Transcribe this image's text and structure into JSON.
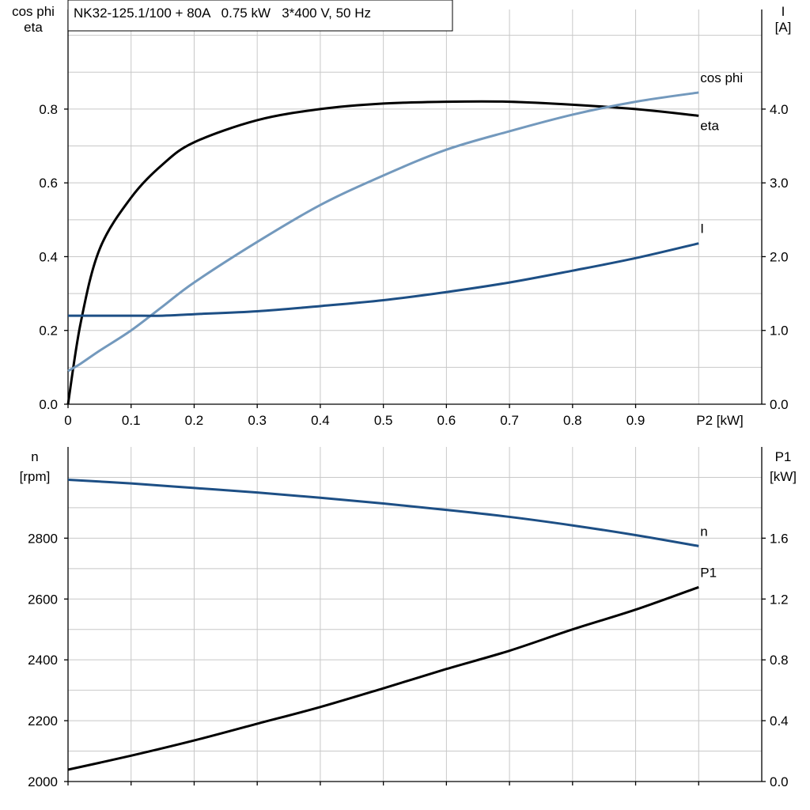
{
  "title": "NK32-125.1/100 + 80A   0.75 kW   3*400 V, 50 Hz",
  "colors": {
    "eta": "#000000",
    "cos_phi": "#7399bd",
    "I": "#1d4f85",
    "n": "#1d4f85",
    "P1": "#000000"
  },
  "chart_data": [
    {
      "type": "line",
      "left_axis_label": [
        "cos phi",
        "eta"
      ],
      "right_axis_label": [
        "I",
        "[A]"
      ],
      "xlabel": "P2 [kW]",
      "x_ticks": [
        "0",
        "0.1",
        "0.2",
        "0.3",
        "0.4",
        "0.5",
        "0.6",
        "0.7",
        "0.8",
        "0.9"
      ],
      "xlim": [
        0,
        1.1
      ],
      "ylim_left": [
        0,
        1.07
      ],
      "ylim_right": [
        0,
        5.35
      ],
      "y_ticks_left": [
        "0.0",
        "0.2",
        "0.4",
        "0.6",
        "0.8"
      ],
      "y_ticks_right": [
        "0.0",
        "1.0",
        "2.0",
        "3.0",
        "4.0"
      ],
      "grid": true,
      "x": [
        0,
        0.02,
        0.05,
        0.1,
        0.15,
        0.2,
        0.3,
        0.4,
        0.5,
        0.6,
        0.7,
        0.8,
        0.9,
        1.0
      ],
      "series": [
        {
          "name": "eta",
          "axis": "left",
          "values": [
            0,
            0.22,
            0.42,
            0.56,
            0.65,
            0.71,
            0.77,
            0.8,
            0.815,
            0.82,
            0.82,
            0.812,
            0.8,
            0.782
          ]
        },
        {
          "name": "cos phi",
          "axis": "left",
          "values": [
            0.09,
            0.11,
            0.145,
            0.2,
            0.265,
            0.33,
            0.44,
            0.54,
            0.62,
            0.69,
            0.74,
            0.785,
            0.82,
            0.845
          ]
        },
        {
          "name": "I",
          "axis": "right",
          "values": [
            1.2,
            1.2,
            1.2,
            1.2,
            1.2,
            1.22,
            1.26,
            1.33,
            1.41,
            1.52,
            1.65,
            1.81,
            1.98,
            2.18
          ]
        }
      ]
    },
    {
      "type": "line",
      "left_axis_label": [
        "n",
        "[rpm]"
      ],
      "right_axis_label": [
        "P1",
        "[kW]"
      ],
      "xlim": [
        0,
        1.1
      ],
      "ylim_left": [
        2000,
        3100
      ],
      "ylim_right": [
        0,
        2.2
      ],
      "y_ticks_left": [
        "2000",
        "2200",
        "2400",
        "2600",
        "2800"
      ],
      "y_ticks_right": [
        "0.0",
        "0.4",
        "0.8",
        "1.2",
        "1.6"
      ],
      "grid": true,
      "x": [
        0,
        0.1,
        0.2,
        0.3,
        0.4,
        0.5,
        0.6,
        0.7,
        0.8,
        0.9,
        1.0
      ],
      "series": [
        {
          "name": "n",
          "axis": "left",
          "values": [
            2992,
            2980,
            2965,
            2950,
            2933,
            2914,
            2893,
            2870,
            2842,
            2810,
            2774
          ]
        },
        {
          "name": "P1",
          "axis": "right",
          "values": [
            0.078,
            0.17,
            0.27,
            0.38,
            0.49,
            0.613,
            0.74,
            0.86,
            1.0,
            1.13,
            1.278
          ]
        }
      ]
    }
  ]
}
